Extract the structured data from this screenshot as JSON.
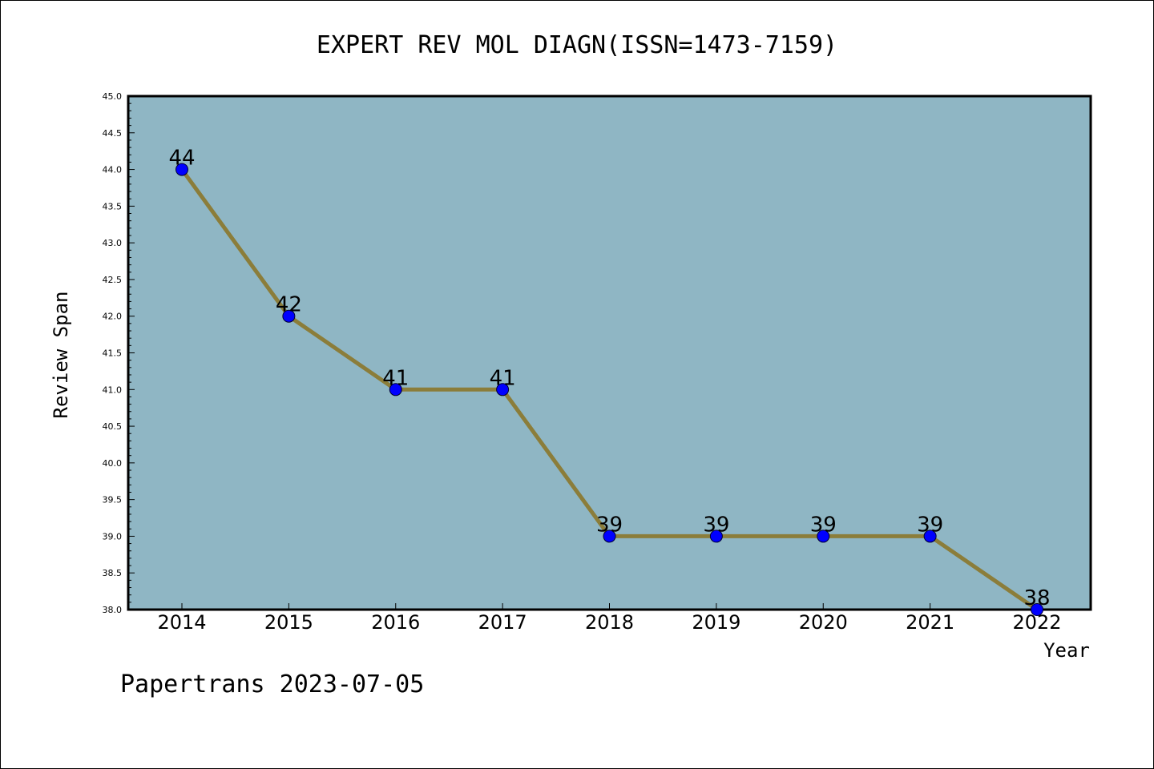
{
  "chart_data": {
    "type": "line",
    "title": "EXPERT REV MOL DIAGN(ISSN=1473-7159)",
    "xlabel": "Year",
    "ylabel": "Review Span",
    "categories": [
      "2014",
      "2015",
      "2016",
      "2017",
      "2018",
      "2019",
      "2020",
      "2021",
      "2022"
    ],
    "values": [
      44,
      42,
      41,
      41,
      39,
      39,
      39,
      39,
      38
    ],
    "data_labels": [
      "44",
      "42",
      "41",
      "41",
      "39",
      "39",
      "39",
      "39",
      "38"
    ],
    "ylim": [
      38.0,
      45.0
    ],
    "yticks": [
      "38.0",
      "38.5",
      "39.0",
      "39.5",
      "40.0",
      "40.5",
      "41.0",
      "41.5",
      "42.0",
      "42.5",
      "43.0",
      "43.5",
      "44.0",
      "44.5",
      "45.0"
    ],
    "grid": false,
    "legend": "none",
    "colors": {
      "plot_background": "#8fb6c4",
      "line": "#8b7d3a",
      "marker": "#0000ff",
      "axis": "#000000"
    }
  },
  "footer": {
    "text": "Papertrans 2023-07-05"
  }
}
